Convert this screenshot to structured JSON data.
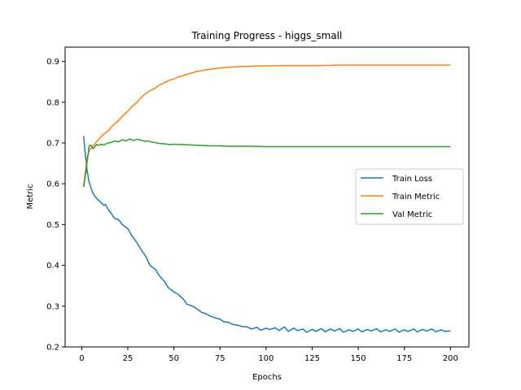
{
  "chart_data": {
    "type": "line",
    "title": "Training Progress - higgs_small",
    "xlabel": "Epochs",
    "ylabel": "Metric",
    "xlim": [
      -9,
      210
    ],
    "ylim": [
      0.2,
      0.935
    ],
    "xticks": [
      0,
      25,
      50,
      75,
      100,
      125,
      150,
      175,
      200
    ],
    "yticks": [
      0.2,
      0.3,
      0.4,
      0.5,
      0.6,
      0.7,
      0.8,
      0.9
    ],
    "ytick_labels": [
      "0.2",
      "0.3",
      "0.4",
      "0.5",
      "0.6",
      "0.7",
      "0.8",
      "0.9"
    ],
    "grid": false,
    "legend_placement": "center-right",
    "series": [
      {
        "name": "Train Loss",
        "color": "#1f77b4",
        "points": [
          [
            1,
            0.717
          ],
          [
            2,
            0.67
          ],
          [
            3,
            0.63
          ],
          [
            4,
            0.605
          ],
          [
            5,
            0.59
          ],
          [
            6,
            0.578
          ],
          [
            7,
            0.57
          ],
          [
            8,
            0.565
          ],
          [
            9,
            0.56
          ],
          [
            10,
            0.556
          ],
          [
            11,
            0.552
          ],
          [
            12,
            0.547
          ],
          [
            13,
            0.549
          ],
          [
            14,
            0.54
          ],
          [
            15,
            0.533
          ],
          [
            16,
            0.528
          ],
          [
            17,
            0.52
          ],
          [
            18,
            0.515
          ],
          [
            20,
            0.512
          ],
          [
            22,
            0.5
          ],
          [
            25,
            0.49
          ],
          [
            27,
            0.474
          ],
          [
            30,
            0.455
          ],
          [
            32,
            0.44
          ],
          [
            35,
            0.42
          ],
          [
            37,
            0.4
          ],
          [
            40,
            0.39
          ],
          [
            42,
            0.375
          ],
          [
            45,
            0.36
          ],
          [
            47,
            0.345
          ],
          [
            50,
            0.335
          ],
          [
            52,
            0.33
          ],
          [
            55,
            0.318
          ],
          [
            57,
            0.305
          ],
          [
            60,
            0.3
          ],
          [
            62,
            0.295
          ],
          [
            65,
            0.285
          ],
          [
            67,
            0.282
          ],
          [
            70,
            0.275
          ],
          [
            72,
            0.272
          ],
          [
            75,
            0.268
          ],
          [
            77,
            0.262
          ],
          [
            80,
            0.26
          ],
          [
            82,
            0.255
          ],
          [
            85,
            0.253
          ],
          [
            87,
            0.25
          ],
          [
            90,
            0.249
          ],
          [
            92,
            0.244
          ],
          [
            95,
            0.248
          ],
          [
            97,
            0.241
          ],
          [
            100,
            0.246
          ],
          [
            102,
            0.243
          ],
          [
            105,
            0.247
          ],
          [
            107,
            0.24
          ],
          [
            110,
            0.249
          ],
          [
            112,
            0.238
          ],
          [
            115,
            0.246
          ],
          [
            117,
            0.24
          ],
          [
            120,
            0.244
          ],
          [
            122,
            0.236
          ],
          [
            125,
            0.243
          ],
          [
            127,
            0.238
          ],
          [
            130,
            0.245
          ],
          [
            132,
            0.237
          ],
          [
            135,
            0.244
          ],
          [
            137,
            0.239
          ],
          [
            140,
            0.245
          ],
          [
            142,
            0.236
          ],
          [
            145,
            0.242
          ],
          [
            147,
            0.238
          ],
          [
            150,
            0.244
          ],
          [
            152,
            0.237
          ],
          [
            155,
            0.243
          ],
          [
            157,
            0.239
          ],
          [
            160,
            0.245
          ],
          [
            162,
            0.237
          ],
          [
            165,
            0.242
          ],
          [
            167,
            0.238
          ],
          [
            170,
            0.244
          ],
          [
            172,
            0.236
          ],
          [
            175,
            0.242
          ],
          [
            177,
            0.238
          ],
          [
            180,
            0.244
          ],
          [
            182,
            0.237
          ],
          [
            185,
            0.243
          ],
          [
            187,
            0.239
          ],
          [
            190,
            0.244
          ],
          [
            192,
            0.237
          ],
          [
            195,
            0.242
          ],
          [
            197,
            0.238
          ],
          [
            200,
            0.239
          ]
        ]
      },
      {
        "name": "Train Metric",
        "color": "#ff7f0e",
        "points": [
          [
            1,
            0.592
          ],
          [
            2,
            0.63
          ],
          [
            3,
            0.665
          ],
          [
            4,
            0.68
          ],
          [
            5,
            0.687
          ],
          [
            6,
            0.692
          ],
          [
            7,
            0.697
          ],
          [
            8,
            0.703
          ],
          [
            9,
            0.708
          ],
          [
            10,
            0.713
          ],
          [
            12,
            0.722
          ],
          [
            14,
            0.728
          ],
          [
            16,
            0.738
          ],
          [
            18,
            0.748
          ],
          [
            20,
            0.755
          ],
          [
            22,
            0.765
          ],
          [
            25,
            0.778
          ],
          [
            27,
            0.788
          ],
          [
            30,
            0.8
          ],
          [
            32,
            0.81
          ],
          [
            35,
            0.822
          ],
          [
            37,
            0.828
          ],
          [
            40,
            0.835
          ],
          [
            42,
            0.842
          ],
          [
            45,
            0.848
          ],
          [
            47,
            0.853
          ],
          [
            50,
            0.857
          ],
          [
            52,
            0.861
          ],
          [
            55,
            0.865
          ],
          [
            57,
            0.868
          ],
          [
            60,
            0.872
          ],
          [
            62,
            0.875
          ],
          [
            65,
            0.877
          ],
          [
            67,
            0.879
          ],
          [
            70,
            0.881
          ],
          [
            72,
            0.882
          ],
          [
            75,
            0.884
          ],
          [
            80,
            0.886
          ],
          [
            85,
            0.887
          ],
          [
            90,
            0.888
          ],
          [
            95,
            0.889
          ],
          [
            100,
            0.889
          ],
          [
            110,
            0.89
          ],
          [
            120,
            0.89
          ],
          [
            130,
            0.89
          ],
          [
            140,
            0.891
          ],
          [
            150,
            0.891
          ],
          [
            160,
            0.891
          ],
          [
            170,
            0.891
          ],
          [
            180,
            0.891
          ],
          [
            190,
            0.891
          ],
          [
            200,
            0.891
          ]
        ]
      },
      {
        "name": "Val Metric",
        "color": "#2ca02c",
        "points": [
          [
            1,
            0.592
          ],
          [
            2,
            0.62
          ],
          [
            3,
            0.655
          ],
          [
            4,
            0.692
          ],
          [
            5,
            0.695
          ],
          [
            6,
            0.686
          ],
          [
            7,
            0.69
          ],
          [
            8,
            0.696
          ],
          [
            9,
            0.694
          ],
          [
            10,
            0.697
          ],
          [
            12,
            0.695
          ],
          [
            14,
            0.7
          ],
          [
            16,
            0.701
          ],
          [
            18,
            0.705
          ],
          [
            20,
            0.703
          ],
          [
            22,
            0.708
          ],
          [
            24,
            0.705
          ],
          [
            26,
            0.71
          ],
          [
            28,
            0.706
          ],
          [
            30,
            0.709
          ],
          [
            32,
            0.707
          ],
          [
            34,
            0.704
          ],
          [
            36,
            0.705
          ],
          [
            38,
            0.702
          ],
          [
            40,
            0.701
          ],
          [
            42,
            0.699
          ],
          [
            45,
            0.698
          ],
          [
            48,
            0.696
          ],
          [
            50,
            0.697
          ],
          [
            55,
            0.696
          ],
          [
            60,
            0.695
          ],
          [
            65,
            0.694
          ],
          [
            70,
            0.693
          ],
          [
            75,
            0.693
          ],
          [
            80,
            0.692
          ],
          [
            90,
            0.692
          ],
          [
            100,
            0.691
          ],
          [
            110,
            0.691
          ],
          [
            120,
            0.691
          ],
          [
            140,
            0.691
          ],
          [
            160,
            0.691
          ],
          [
            180,
            0.691
          ],
          [
            200,
            0.691
          ]
        ]
      }
    ]
  }
}
